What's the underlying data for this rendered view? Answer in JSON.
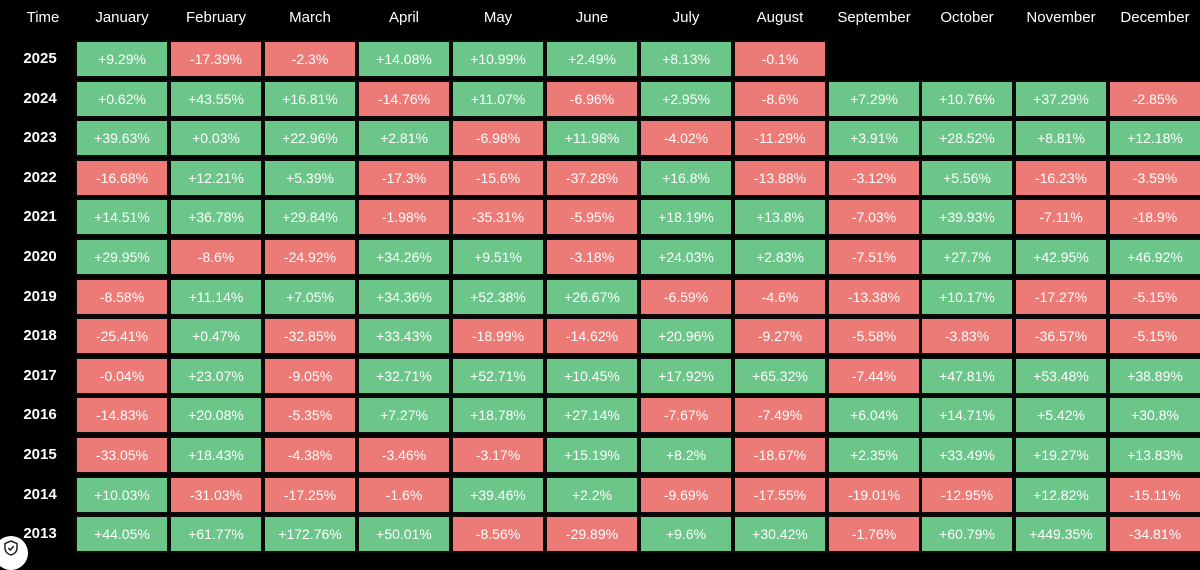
{
  "chart_data": {
    "type": "table",
    "corner_label": "Time",
    "columns": [
      "January",
      "February",
      "March",
      "April",
      "May",
      "June",
      "July",
      "August",
      "September",
      "October",
      "November",
      "December"
    ],
    "rows": [
      {
        "year": "2025",
        "values": [
          "+9.29%",
          "-17.39%",
          "-2.3%",
          "+14.08%",
          "+10.99%",
          "+2.49%",
          "+8.13%",
          "-0.1%",
          null,
          null,
          null,
          null
        ]
      },
      {
        "year": "2024",
        "values": [
          "+0.62%",
          "+43.55%",
          "+16.81%",
          "-14.76%",
          "+11.07%",
          "-6.96%",
          "+2.95%",
          "-8.6%",
          "+7.29%",
          "+10.76%",
          "+37.29%",
          "-2.85%"
        ]
      },
      {
        "year": "2023",
        "values": [
          "+39.63%",
          "+0.03%",
          "+22.96%",
          "+2.81%",
          "-6.98%",
          "+11.98%",
          "-4.02%",
          "-11.29%",
          "+3.91%",
          "+28.52%",
          "+8.81%",
          "+12.18%"
        ]
      },
      {
        "year": "2022",
        "values": [
          "-16.68%",
          "+12.21%",
          "+5.39%",
          "-17.3%",
          "-15.6%",
          "-37.28%",
          "+16.8%",
          "-13.88%",
          "-3.12%",
          "+5.56%",
          "-16.23%",
          "-3.59%"
        ]
      },
      {
        "year": "2021",
        "values": [
          "+14.51%",
          "+36.78%",
          "+29.84%",
          "-1.98%",
          "-35.31%",
          "-5.95%",
          "+18.19%",
          "+13.8%",
          "-7.03%",
          "+39.93%",
          "-7.11%",
          "-18.9%"
        ]
      },
      {
        "year": "2020",
        "values": [
          "+29.95%",
          "-8.6%",
          "-24.92%",
          "+34.26%",
          "+9.51%",
          "-3.18%",
          "+24.03%",
          "+2.83%",
          "-7.51%",
          "+27.7%",
          "+42.95%",
          "+46.92%"
        ]
      },
      {
        "year": "2019",
        "values": [
          "-8.58%",
          "+11.14%",
          "+7.05%",
          "+34.36%",
          "+52.38%",
          "+26.67%",
          "-6.59%",
          "-4.6%",
          "-13.38%",
          "+10.17%",
          "-17.27%",
          "-5.15%"
        ]
      },
      {
        "year": "2018",
        "values": [
          "-25.41%",
          "+0.47%",
          "-32.85%",
          "+33.43%",
          "-18.99%",
          "-14.62%",
          "+20.96%",
          "-9.27%",
          "-5.58%",
          "-3.83%",
          "-36.57%",
          "-5.15%"
        ]
      },
      {
        "year": "2017",
        "values": [
          "-0.04%",
          "+23.07%",
          "-9.05%",
          "+32.71%",
          "+52.71%",
          "+10.45%",
          "+17.92%",
          "+65.32%",
          "-7.44%",
          "+47.81%",
          "+53.48%",
          "+38.89%"
        ]
      },
      {
        "year": "2016",
        "values": [
          "-14.83%",
          "+20.08%",
          "-5.35%",
          "+7.27%",
          "+18.78%",
          "+27.14%",
          "-7.67%",
          "-7.49%",
          "+6.04%",
          "+14.71%",
          "+5.42%",
          "+30.8%"
        ]
      },
      {
        "year": "2015",
        "values": [
          "-33.05%",
          "+18.43%",
          "-4.38%",
          "-3.46%",
          "-3.17%",
          "+15.19%",
          "+8.2%",
          "-18.67%",
          "+2.35%",
          "+33.49%",
          "+19.27%",
          "+13.83%"
        ]
      },
      {
        "year": "2014",
        "values": [
          "+10.03%",
          "-31.03%",
          "-17.25%",
          "-1.6%",
          "+39.46%",
          "+2.2%",
          "-9.69%",
          "-17.55%",
          "-19.01%",
          "-12.95%",
          "+12.82%",
          "-15.11%"
        ]
      },
      {
        "year": "2013",
        "values": [
          "+44.05%",
          "+61.77%",
          "+172.76%",
          "+50.01%",
          "-8.56%",
          "-29.89%",
          "+9.6%",
          "+30.42%",
          "-1.76%",
          "+60.79%",
          "+449.35%",
          "-34.81%"
        ]
      }
    ],
    "colors": {
      "positive": "#6cc68a",
      "negative": "#ec7b77",
      "background": "#000000",
      "text": "#ffffff"
    }
  },
  "badge": {
    "icon": "shield-check-icon"
  }
}
